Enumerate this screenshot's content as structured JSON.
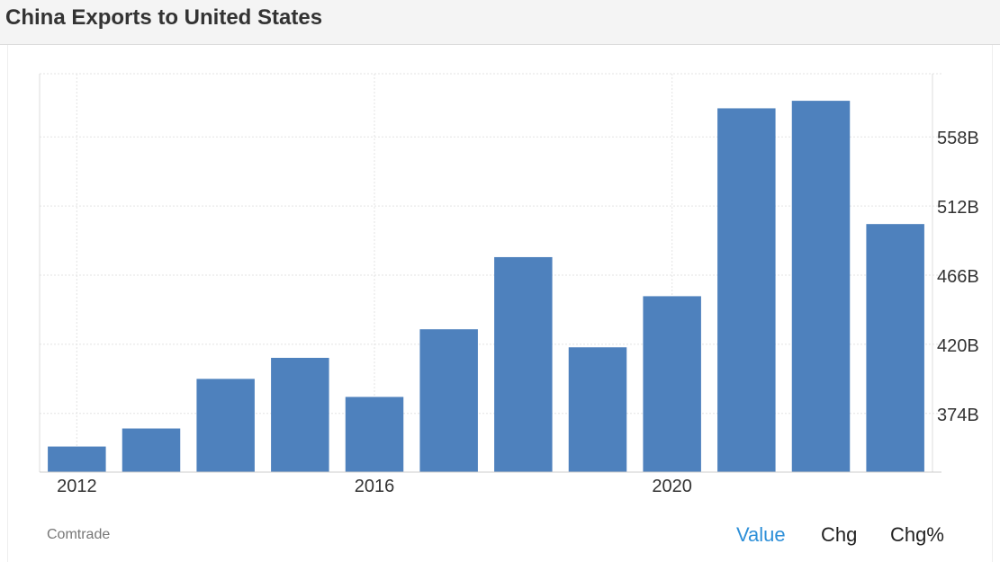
{
  "header": {
    "title": "China Exports to United States"
  },
  "footer": {
    "source": "Comtrade",
    "toggles": [
      {
        "label": "Value",
        "active": true
      },
      {
        "label": "Chg",
        "active": false
      },
      {
        "label": "Chg%",
        "active": false
      }
    ]
  },
  "colors": {
    "bar": "#4e81bd",
    "active_toggle": "#2d8fd8"
  },
  "chart_data": {
    "type": "bar",
    "title": "China Exports to United States",
    "categories": [
      "2012",
      "2013",
      "2014",
      "2015",
      "2016",
      "2017",
      "2018",
      "2019",
      "2020",
      "2021",
      "2022",
      "2023"
    ],
    "x_tick_labels": [
      "2012",
      "2016",
      "2020"
    ],
    "values": [
      352,
      364,
      397,
      411,
      385,
      430,
      478,
      418,
      452,
      577,
      582,
      500
    ],
    "ylim": [
      335,
      600
    ],
    "yticks": [
      374,
      420,
      466,
      512,
      558
    ],
    "ytick_labels": [
      "374B",
      "420B",
      "466B",
      "512B",
      "558B"
    ],
    "y_axis_position": "right",
    "grid": true,
    "unit": "B"
  }
}
